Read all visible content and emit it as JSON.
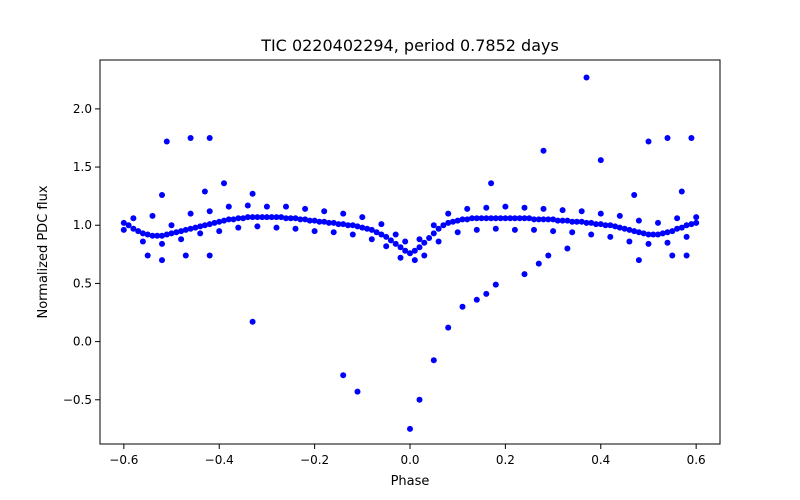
{
  "chart_data": {
    "type": "scatter",
    "title": "TIC 0220402294, period 0.7852 days",
    "xlabel": "Phase",
    "ylabel": "Normalized PDC flux",
    "xlim": [
      -0.65,
      0.65
    ],
    "ylim": [
      -0.88,
      2.42
    ],
    "grid": false,
    "marker_color": "#0000ff",
    "x_ticks": [
      {
        "value": -0.6,
        "label": "−0.6"
      },
      {
        "value": -0.4,
        "label": "−0.4"
      },
      {
        "value": -0.2,
        "label": "−0.2"
      },
      {
        "value": 0.0,
        "label": "0.0"
      },
      {
        "value": 0.2,
        "label": "0.2"
      },
      {
        "value": 0.4,
        "label": "0.4"
      },
      {
        "value": 0.6,
        "label": "0.6"
      }
    ],
    "y_ticks": [
      {
        "value": -0.5,
        "label": "−0.5"
      },
      {
        "value": 0.0,
        "label": "0.0"
      },
      {
        "value": 0.5,
        "label": "0.5"
      },
      {
        "value": 1.0,
        "label": "1.0"
      },
      {
        "value": 1.5,
        "label": "1.5"
      },
      {
        "value": 2.0,
        "label": "2.0"
      }
    ],
    "series": [
      {
        "points": [
          [
            -0.6,
            1.02
          ],
          [
            -0.59,
            1.0
          ],
          [
            -0.58,
            0.97
          ],
          [
            -0.57,
            0.95
          ],
          [
            -0.56,
            0.93
          ],
          [
            -0.55,
            0.92
          ],
          [
            -0.54,
            0.91
          ],
          [
            -0.53,
            0.91
          ],
          [
            -0.52,
            0.91
          ],
          [
            -0.51,
            0.92
          ],
          [
            -0.5,
            0.93
          ],
          [
            -0.49,
            0.94
          ],
          [
            -0.48,
            0.95
          ],
          [
            -0.47,
            0.96
          ],
          [
            -0.46,
            0.97
          ],
          [
            -0.45,
            0.98
          ],
          [
            -0.44,
            0.99
          ],
          [
            -0.43,
            1.0
          ],
          [
            -0.42,
            1.01
          ],
          [
            -0.41,
            1.02
          ],
          [
            -0.4,
            1.03
          ],
          [
            -0.39,
            1.04
          ],
          [
            -0.38,
            1.05
          ],
          [
            -0.37,
            1.05
          ],
          [
            -0.36,
            1.06
          ],
          [
            -0.35,
            1.06
          ],
          [
            -0.34,
            1.07
          ],
          [
            -0.33,
            1.07
          ],
          [
            -0.32,
            1.07
          ],
          [
            -0.31,
            1.07
          ],
          [
            -0.3,
            1.07
          ],
          [
            -0.29,
            1.07
          ],
          [
            -0.28,
            1.07
          ],
          [
            -0.27,
            1.07
          ],
          [
            -0.26,
            1.06
          ],
          [
            -0.25,
            1.06
          ],
          [
            -0.24,
            1.06
          ],
          [
            -0.23,
            1.05
          ],
          [
            -0.22,
            1.05
          ],
          [
            -0.21,
            1.04
          ],
          [
            -0.2,
            1.04
          ],
          [
            -0.19,
            1.03
          ],
          [
            -0.18,
            1.03
          ],
          [
            -0.17,
            1.02
          ],
          [
            -0.16,
            1.02
          ],
          [
            -0.15,
            1.01
          ],
          [
            -0.14,
            1.01
          ],
          [
            -0.13,
            1.0
          ],
          [
            -0.12,
            1.0
          ],
          [
            -0.11,
            0.99
          ],
          [
            -0.1,
            0.98
          ],
          [
            -0.09,
            0.97
          ],
          [
            -0.08,
            0.96
          ],
          [
            -0.07,
            0.94
          ],
          [
            -0.06,
            0.92
          ],
          [
            -0.05,
            0.9
          ],
          [
            -0.04,
            0.87
          ],
          [
            -0.03,
            0.84
          ],
          [
            -0.02,
            0.81
          ],
          [
            -0.01,
            0.78
          ],
          [
            0.0,
            0.76
          ],
          [
            0.01,
            0.78
          ],
          [
            0.02,
            0.81
          ],
          [
            0.03,
            0.85
          ],
          [
            0.04,
            0.89
          ],
          [
            0.05,
            0.93
          ],
          [
            0.06,
            0.97
          ],
          [
            0.07,
            1.0
          ],
          [
            0.08,
            1.02
          ],
          [
            0.09,
            1.03
          ],
          [
            0.1,
            1.04
          ],
          [
            0.11,
            1.05
          ],
          [
            0.12,
            1.05
          ],
          [
            0.13,
            1.06
          ],
          [
            0.14,
            1.06
          ],
          [
            0.15,
            1.06
          ],
          [
            0.16,
            1.06
          ],
          [
            0.17,
            1.06
          ],
          [
            0.18,
            1.06
          ],
          [
            0.19,
            1.06
          ],
          [
            0.2,
            1.06
          ],
          [
            0.21,
            1.06
          ],
          [
            0.22,
            1.06
          ],
          [
            0.23,
            1.06
          ],
          [
            0.24,
            1.06
          ],
          [
            0.25,
            1.06
          ],
          [
            0.26,
            1.05
          ],
          [
            0.27,
            1.05
          ],
          [
            0.28,
            1.05
          ],
          [
            0.29,
            1.05
          ],
          [
            0.3,
            1.05
          ],
          [
            0.31,
            1.04
          ],
          [
            0.32,
            1.04
          ],
          [
            0.33,
            1.04
          ],
          [
            0.34,
            1.03
          ],
          [
            0.35,
            1.03
          ],
          [
            0.36,
            1.03
          ],
          [
            0.37,
            1.02
          ],
          [
            0.38,
            1.02
          ],
          [
            0.39,
            1.01
          ],
          [
            0.4,
            1.01
          ],
          [
            0.41,
            1.0
          ],
          [
            0.42,
            1.0
          ],
          [
            0.43,
            0.99
          ],
          [
            0.44,
            0.98
          ],
          [
            0.45,
            0.97
          ],
          [
            0.46,
            0.96
          ],
          [
            0.47,
            0.95
          ],
          [
            0.48,
            0.94
          ],
          [
            0.49,
            0.93
          ],
          [
            0.5,
            0.92
          ],
          [
            0.51,
            0.92
          ],
          [
            0.52,
            0.92
          ],
          [
            0.53,
            0.93
          ],
          [
            0.54,
            0.94
          ],
          [
            0.55,
            0.95
          ],
          [
            0.56,
            0.97
          ],
          [
            0.57,
            0.98
          ],
          [
            0.58,
            1.0
          ],
          [
            0.59,
            1.01
          ],
          [
            0.6,
            1.02
          ],
          [
            -0.6,
            0.96
          ],
          [
            -0.58,
            1.06
          ],
          [
            -0.56,
            0.86
          ],
          [
            -0.54,
            1.08
          ],
          [
            -0.52,
            0.84
          ],
          [
            -0.5,
            1.0
          ],
          [
            -0.48,
            0.88
          ],
          [
            -0.46,
            1.1
          ],
          [
            -0.44,
            0.93
          ],
          [
            -0.42,
            1.12
          ],
          [
            -0.4,
            0.95
          ],
          [
            -0.38,
            1.16
          ],
          [
            -0.36,
            0.98
          ],
          [
            -0.34,
            1.17
          ],
          [
            -0.32,
            0.99
          ],
          [
            -0.3,
            1.16
          ],
          [
            -0.28,
            0.98
          ],
          [
            -0.26,
            1.16
          ],
          [
            -0.24,
            0.97
          ],
          [
            -0.22,
            1.14
          ],
          [
            -0.2,
            0.95
          ],
          [
            -0.18,
            1.12
          ],
          [
            -0.16,
            0.94
          ],
          [
            -0.14,
            1.1
          ],
          [
            -0.12,
            0.92
          ],
          [
            -0.1,
            1.07
          ],
          [
            -0.08,
            0.88
          ],
          [
            -0.06,
            1.01
          ],
          [
            -0.05,
            0.82
          ],
          [
            -0.03,
            0.92
          ],
          [
            -0.02,
            0.72
          ],
          [
            -0.01,
            0.86
          ],
          [
            0.01,
            0.7
          ],
          [
            0.02,
            0.88
          ],
          [
            0.03,
            0.74
          ],
          [
            0.05,
            1.0
          ],
          [
            0.06,
            0.86
          ],
          [
            0.08,
            1.1
          ],
          [
            0.1,
            0.94
          ],
          [
            0.12,
            1.14
          ],
          [
            0.14,
            0.96
          ],
          [
            0.16,
            1.15
          ],
          [
            0.18,
            0.97
          ],
          [
            0.2,
            1.16
          ],
          [
            0.22,
            0.96
          ],
          [
            0.24,
            1.15
          ],
          [
            0.26,
            0.96
          ],
          [
            0.28,
            1.14
          ],
          [
            0.3,
            0.95
          ],
          [
            0.32,
            1.13
          ],
          [
            0.34,
            0.94
          ],
          [
            0.36,
            1.12
          ],
          [
            0.38,
            0.92
          ],
          [
            0.4,
            1.1
          ],
          [
            0.42,
            0.9
          ],
          [
            0.44,
            1.08
          ],
          [
            0.46,
            0.86
          ],
          [
            0.48,
            1.04
          ],
          [
            0.5,
            0.84
          ],
          [
            0.52,
            1.02
          ],
          [
            0.54,
            0.85
          ],
          [
            0.56,
            1.06
          ],
          [
            0.58,
            0.9
          ],
          [
            0.6,
            1.07
          ],
          [
            -0.51,
            1.72
          ],
          [
            -0.46,
            1.75
          ],
          [
            -0.42,
            1.75
          ],
          [
            -0.39,
            1.36
          ],
          [
            -0.43,
            1.29
          ],
          [
            -0.52,
            1.26
          ],
          [
            -0.33,
            1.27
          ],
          [
            0.37,
            2.27
          ],
          [
            0.28,
            1.64
          ],
          [
            0.4,
            1.56
          ],
          [
            0.5,
            1.72
          ],
          [
            0.54,
            1.75
          ],
          [
            0.59,
            1.75
          ],
          [
            0.57,
            1.29
          ],
          [
            0.47,
            1.26
          ],
          [
            0.17,
            1.36
          ],
          [
            -0.33,
            0.17
          ],
          [
            -0.14,
            -0.29
          ],
          [
            -0.11,
            -0.43
          ],
          [
            0.0,
            -0.75
          ],
          [
            0.02,
            -0.5
          ],
          [
            0.05,
            -0.16
          ],
          [
            0.08,
            0.12
          ],
          [
            0.11,
            0.3
          ],
          [
            0.14,
            0.36
          ],
          [
            0.16,
            0.41
          ],
          [
            0.18,
            0.49
          ],
          [
            0.24,
            0.58
          ],
          [
            0.27,
            0.67
          ],
          [
            0.29,
            0.74
          ],
          [
            0.33,
            0.8
          ],
          [
            -0.42,
            0.74
          ],
          [
            -0.47,
            0.74
          ],
          [
            -0.55,
            0.74
          ],
          [
            -0.52,
            0.7
          ],
          [
            0.55,
            0.74
          ],
          [
            0.58,
            0.74
          ],
          [
            0.48,
            0.7
          ]
        ]
      }
    ]
  }
}
